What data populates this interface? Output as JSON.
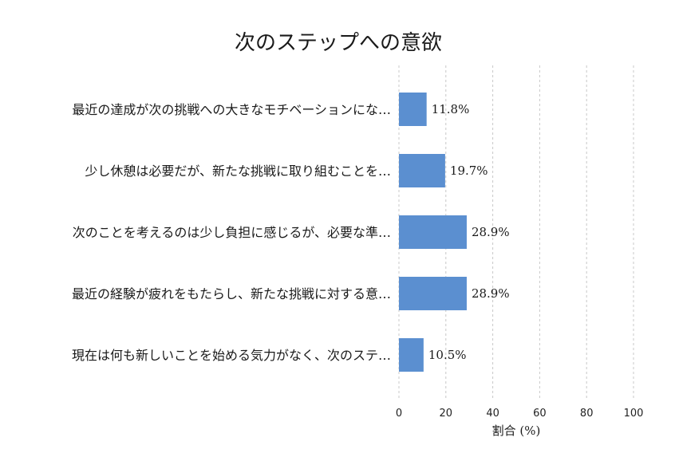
{
  "chart_data": {
    "type": "bar",
    "orientation": "horizontal",
    "title": "次のステップへの意欲",
    "xlabel": "割合 (%)",
    "ylabel": "",
    "xlim": [
      0,
      100
    ],
    "xticks": [
      0,
      20,
      40,
      60,
      80,
      100
    ],
    "grid": true,
    "bar_color": "#5b8fd0",
    "categories": [
      "最近の達成が次の挑戦への大きなモチベーションにな…",
      "少し休憩は必要だが、新たな挑戦に取り組むことを…",
      "次のことを考えるのは少し負担に感じるが、必要な準…",
      "最近の経験が疲れをもたらし、新たな挑戦に対する意…",
      "現在は何も新しいことを始める気力がなく、次のステ…"
    ],
    "values": [
      11.8,
      19.7,
      28.9,
      28.9,
      10.5
    ],
    "value_labels": [
      "11.8%",
      "19.7%",
      "28.9%",
      "28.9%",
      "10.5%"
    ]
  }
}
